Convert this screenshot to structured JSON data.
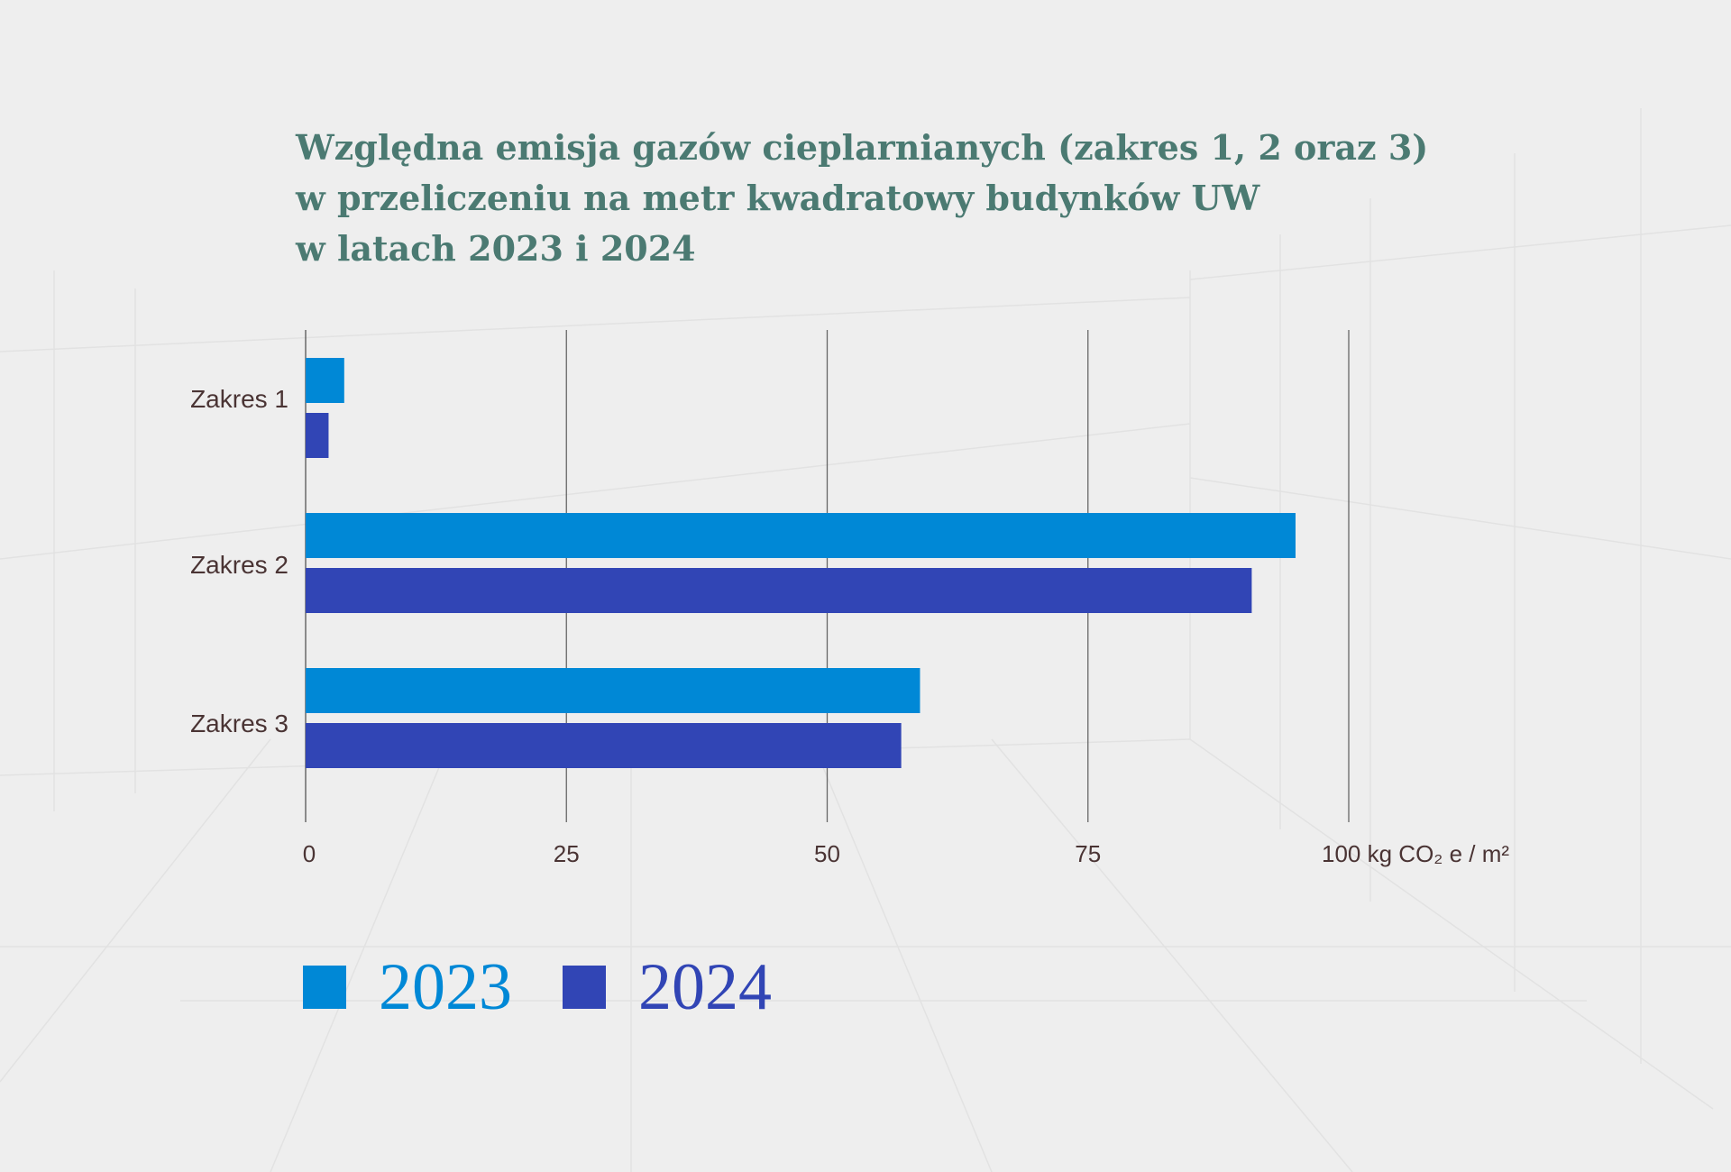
{
  "chart_data": {
    "type": "bar",
    "orientation": "horizontal",
    "title": [
      "Względna emisja gazów cieplarnianych (zakres 1, 2 oraz 3)",
      "w przeliczeniu na metr kwadratowy budynków UW",
      "w latach 2023 i 2024"
    ],
    "categories": [
      "Zakres 1",
      "Zakres 2",
      "Zakres 3"
    ],
    "series": [
      {
        "name": "2023",
        "color": "#0088d6",
        "values": [
          3.7,
          94.9,
          58.9
        ]
      },
      {
        "name": "2024",
        "color": "#3145b5",
        "values": [
          2.2,
          90.7,
          57.1
        ]
      }
    ],
    "xlim": [
      0,
      100
    ],
    "xticks": [
      "0",
      "25",
      "50",
      "75",
      "100 kg CO₂ e / m²"
    ],
    "xtick_values": [
      0,
      25,
      50,
      75,
      100
    ],
    "xlabel": "",
    "ylabel": "",
    "grid": true,
    "legend_position": "bottom-left"
  }
}
